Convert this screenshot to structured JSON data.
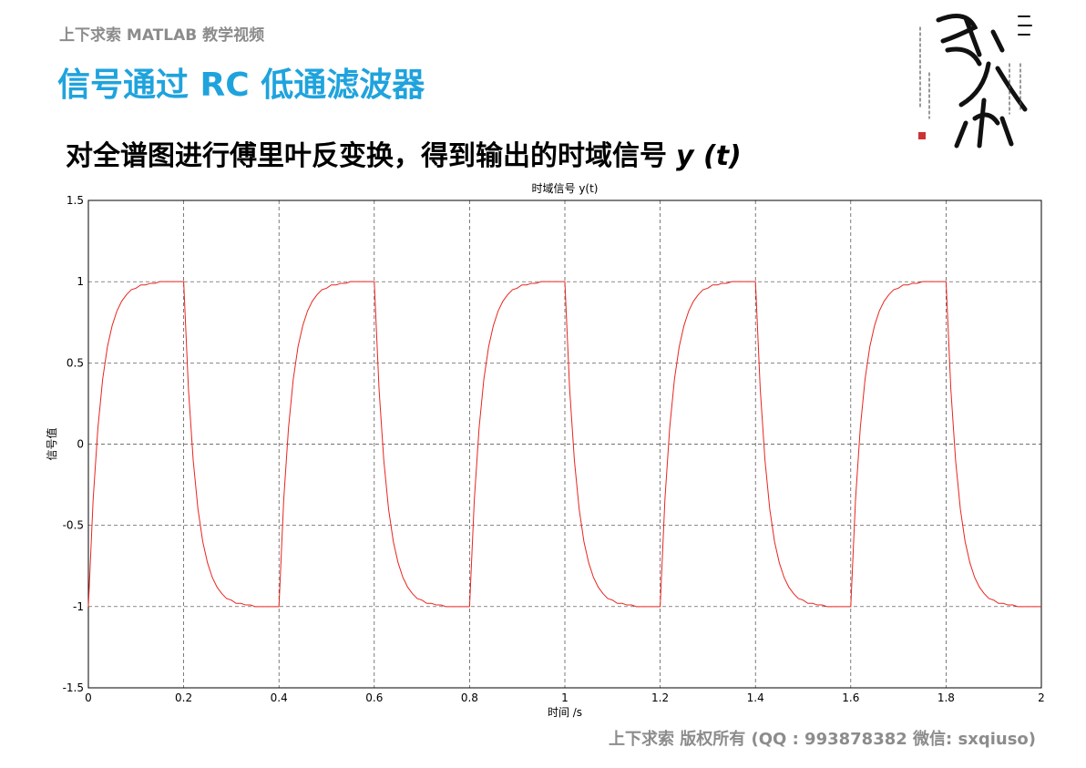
{
  "header": "上下求索 MATLAB 教学视频",
  "title": "信号通过 RC 低通滤波器",
  "subtitle": "对全谱图进行傅里叶反变换，得到输出的时域信号",
  "subtitle_variable": "y (t)",
  "footer": "上下求索  版权所有  (QQ : 993878382   微信: sxqiuso)",
  "chart_data": {
    "type": "line",
    "title": "时域信号 y(t)",
    "xlabel": "时间 /s",
    "ylabel": "信号值",
    "x": [
      0,
      0.01,
      0.02,
      0.03,
      0.04,
      0.05,
      0.06,
      0.07,
      0.08,
      0.09,
      0.1,
      0.11,
      0.12,
      0.13,
      0.14,
      0.15,
      0.16,
      0.17,
      0.18,
      0.19,
      0.2,
      0.21,
      0.22,
      0.23,
      0.24,
      0.25,
      0.26,
      0.27,
      0.28,
      0.29,
      0.3,
      0.31,
      0.32,
      0.33,
      0.34,
      0.35,
      0.36,
      0.37,
      0.38,
      0.39,
      0.4,
      0.41,
      0.42,
      0.43,
      0.44,
      0.45,
      0.46,
      0.47,
      0.48,
      0.49,
      0.5,
      0.51,
      0.52,
      0.53,
      0.54,
      0.55,
      0.56,
      0.57,
      0.58,
      0.59,
      0.6,
      0.61,
      0.62,
      0.63,
      0.64,
      0.65,
      0.66,
      0.67,
      0.68,
      0.69,
      0.7,
      0.71,
      0.72,
      0.73,
      0.74,
      0.75,
      0.76,
      0.77,
      0.78,
      0.79,
      0.8,
      0.81,
      0.82,
      0.83,
      0.84,
      0.85,
      0.86,
      0.87,
      0.88,
      0.89,
      0.9,
      0.91,
      0.92,
      0.93,
      0.94,
      0.95,
      0.96,
      0.97,
      0.98,
      0.99,
      1,
      1.01,
      1.02,
      1.03,
      1.04,
      1.05,
      1.06,
      1.07,
      1.08,
      1.09,
      1.1,
      1.11,
      1.12,
      1.13,
      1.14,
      1.15,
      1.16,
      1.17,
      1.18,
      1.19,
      1.2,
      1.21,
      1.22,
      1.23,
      1.24,
      1.25,
      1.26,
      1.27,
      1.28,
      1.29,
      1.3,
      1.31,
      1.32,
      1.33,
      1.34,
      1.35,
      1.36,
      1.37,
      1.38,
      1.39,
      1.4,
      1.41,
      1.42,
      1.43,
      1.44,
      1.45,
      1.46,
      1.47,
      1.48,
      1.49,
      1.5,
      1.51,
      1.52,
      1.53,
      1.54,
      1.55,
      1.56,
      1.57,
      1.58,
      1.59,
      1.6,
      1.61,
      1.62,
      1.63,
      1.64,
      1.65,
      1.66,
      1.67,
      1.68,
      1.69,
      1.7,
      1.71,
      1.72,
      1.73,
      1.74,
      1.75,
      1.76,
      1.77,
      1.78,
      1.79,
      1.8,
      1.81,
      1.82,
      1.83,
      1.84,
      1.85,
      1.86,
      1.87,
      1.88,
      1.89,
      1.9,
      1.91,
      1.92,
      1.93,
      1.94,
      1.95,
      1.96,
      1.97,
      1.98,
      1.99,
      2
    ],
    "series": [
      {
        "color": "#e8251f",
        "values": [
          -1,
          -0.34,
          0.1,
          0.4,
          0.6,
          0.73,
          0.82,
          0.88,
          0.92,
          0.95,
          0.96,
          0.98,
          0.98,
          0.99,
          0.99,
          1,
          1,
          1,
          1,
          1,
          1,
          0.34,
          -0.1,
          -0.4,
          -0.6,
          -0.73,
          -0.82,
          -0.88,
          -0.92,
          -0.95,
          -0.96,
          -0.98,
          -0.98,
          -0.99,
          -0.99,
          -1,
          -1,
          -1,
          -1,
          -1,
          -1,
          -0.34,
          0.1,
          0.4,
          0.6,
          0.73,
          0.82,
          0.88,
          0.92,
          0.95,
          0.96,
          0.98,
          0.98,
          0.99,
          0.99,
          1,
          1,
          1,
          1,
          1,
          1,
          0.34,
          -0.1,
          -0.4,
          -0.6,
          -0.73,
          -0.82,
          -0.88,
          -0.92,
          -0.95,
          -0.96,
          -0.98,
          -0.98,
          -0.99,
          -0.99,
          -1,
          -1,
          -1,
          -1,
          -1,
          -1,
          -0.34,
          0.1,
          0.4,
          0.6,
          0.73,
          0.82,
          0.88,
          0.92,
          0.95,
          0.96,
          0.98,
          0.98,
          0.99,
          0.99,
          1,
          1,
          1,
          1,
          1,
          1,
          0.34,
          -0.1,
          -0.4,
          -0.6,
          -0.73,
          -0.82,
          -0.88,
          -0.92,
          -0.95,
          -0.96,
          -0.98,
          -0.98,
          -0.99,
          -0.99,
          -1,
          -1,
          -1,
          -1,
          -1,
          -1,
          -0.34,
          0.1,
          0.4,
          0.6,
          0.73,
          0.82,
          0.88,
          0.92,
          0.95,
          0.96,
          0.98,
          0.98,
          0.99,
          0.99,
          1,
          1,
          1,
          1,
          1,
          1,
          0.34,
          -0.1,
          -0.4,
          -0.6,
          -0.73,
          -0.82,
          -0.88,
          -0.92,
          -0.95,
          -0.96,
          -0.98,
          -0.98,
          -0.99,
          -0.99,
          -1,
          -1,
          -1,
          -1,
          -1,
          -1,
          -0.34,
          0.1,
          0.4,
          0.6,
          0.73,
          0.82,
          0.88,
          0.92,
          0.95,
          0.96,
          0.98,
          0.98,
          0.99,
          0.99,
          1,
          1,
          1,
          1,
          1,
          1,
          0.34,
          -0.1,
          -0.4,
          -0.6,
          -0.73,
          -0.82,
          -0.88,
          -0.92,
          -0.95,
          -0.96,
          -0.98,
          -0.98,
          -0.99,
          -0.99,
          -1,
          -1,
          -1,
          -1,
          -1,
          -1
        ]
      }
    ],
    "xlim": [
      0,
      2
    ],
    "ylim": [
      -1.5,
      1.5
    ],
    "xticks": [
      0,
      0.2,
      0.4,
      0.6,
      0.8,
      1,
      1.2,
      1.4,
      1.6,
      1.8,
      2
    ],
    "yticks": [
      -1.5,
      -1,
      -0.5,
      0,
      0.5,
      1,
      1.5
    ],
    "grid": true
  }
}
